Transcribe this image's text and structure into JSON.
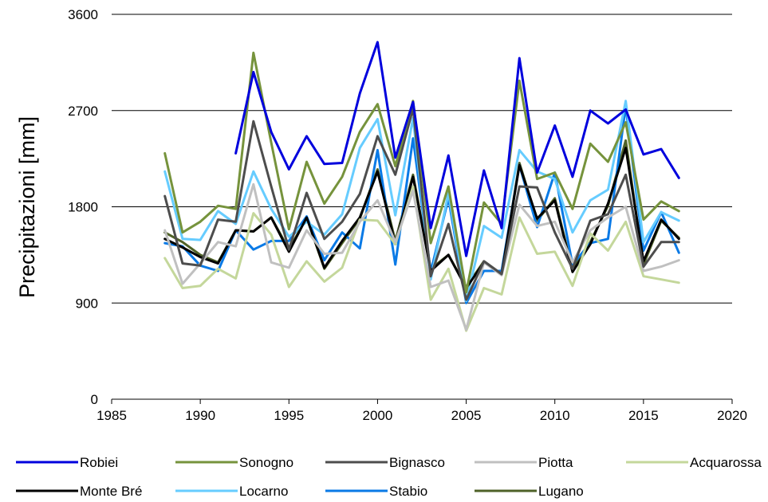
{
  "chart_data": {
    "type": "line",
    "title": "",
    "xlabel": "",
    "ylabel": "Precipitazioni [mm]",
    "xlim": [
      1985,
      2020
    ],
    "ylim": [
      0,
      3600
    ],
    "xticks": [
      "1985",
      "1990",
      "1995",
      "2000",
      "2005",
      "2010",
      "2015",
      "2020"
    ],
    "yticks": [
      "0",
      "900",
      "1800",
      "2700",
      "3600"
    ],
    "grid": "horizontal",
    "legend": "bottom",
    "x": [
      1988,
      1989,
      1990,
      1991,
      1992,
      1993,
      1994,
      1995,
      1996,
      1997,
      1998,
      1999,
      2000,
      2001,
      2002,
      2003,
      2004,
      2005,
      2006,
      2007,
      2008,
      2009,
      2010,
      2011,
      2012,
      2013,
      2014,
      2015,
      2016,
      2017
    ],
    "series": [
      {
        "name": "Robiei",
        "color": "#0000DD",
        "values": [
          null,
          null,
          null,
          null,
          2300,
          3060,
          2500,
          2150,
          2460,
          2200,
          2210,
          2860,
          3340,
          2260,
          2780,
          1600,
          2280,
          1340,
          2140,
          1600,
          3190,
          2120,
          2560,
          2080,
          2700,
          2580,
          2710,
          2290,
          2340,
          2070
        ]
      },
      {
        "name": "Sonogno",
        "color": "#76933C",
        "values": [
          2300,
          1560,
          1660,
          1810,
          1780,
          3240,
          2400,
          1590,
          2220,
          1830,
          2080,
          2500,
          2760,
          2180,
          2790,
          1460,
          1990,
          1000,
          1840,
          1640,
          2980,
          2060,
          2120,
          1780,
          2390,
          2220,
          2590,
          1680,
          1850,
          1760
        ]
      },
      {
        "name": "Bignasco",
        "color": "#4D4D4D",
        "values": [
          1900,
          1270,
          1250,
          1680,
          1660,
          2600,
          1990,
          1400,
          1930,
          1500,
          1660,
          1920,
          2460,
          2100,
          2720,
          1150,
          1640,
          930,
          1290,
          1170,
          1990,
          1980,
          1560,
          1220,
          1670,
          1730,
          2100,
          1240,
          1470,
          1470
        ]
      },
      {
        "name": "Piotta",
        "color": "#C0C0C0",
        "values": [
          1580,
          1080,
          1270,
          1470,
          1430,
          2010,
          1280,
          1230,
          1580,
          1360,
          1370,
          1660,
          1860,
          1470,
          1950,
          1050,
          1110,
          650,
          1280,
          1160,
          1820,
          1620,
          1660,
          1280,
          1580,
          1700,
          1800,
          1200,
          1240,
          1300
        ]
      },
      {
        "name": "Acquarossa",
        "color": "#C4D79B",
        "values": [
          1320,
          1040,
          1060,
          1220,
          1130,
          1740,
          1540,
          1050,
          1290,
          1100,
          1230,
          1680,
          1670,
          1450,
          1990,
          930,
          1220,
          640,
          1040,
          980,
          1700,
          1360,
          1380,
          1060,
          1550,
          1390,
          1660,
          1150,
          1120,
          1090
        ]
      },
      {
        "name": "Monte Bré",
        "color": "#000000",
        "values": [
          1500,
          1420,
          1330,
          1270,
          1580,
          1570,
          1700,
          1380,
          1700,
          1230,
          1480,
          1700,
          2130,
          1450,
          2080,
          1200,
          1350,
          1040,
          1280,
          1170,
          2190,
          1690,
          1860,
          1190,
          1450,
          1830,
          2350,
          1290,
          1680,
          1500
        ]
      },
      {
        "name": "Locarno",
        "color": "#66CCFF",
        "values": [
          2130,
          1500,
          1490,
          1760,
          1640,
          2130,
          1780,
          1520,
          1660,
          1540,
          1730,
          2350,
          2620,
          1720,
          2630,
          1120,
          1930,
          920,
          1620,
          1510,
          2330,
          2130,
          2060,
          1560,
          1860,
          1960,
          2790,
          1470,
          1750,
          1670
        ]
      },
      {
        "name": "Stabio",
        "color": "#0A7AE6",
        "values": [
          1460,
          1430,
          1250,
          1200,
          1580,
          1400,
          1480,
          1480,
          1710,
          1300,
          1560,
          1410,
          2330,
          1260,
          2440,
          1190,
          1880,
          900,
          1200,
          1200,
          2190,
          1610,
          2120,
          1260,
          1460,
          1500,
          2740,
          1390,
          1750,
          1370
        ]
      },
      {
        "name": "Lugano",
        "color": "#4F6228",
        "values": [
          1560,
          1470,
          1350,
          1280,
          1580,
          1570,
          1700,
          1400,
          1700,
          1220,
          1460,
          1690,
          2150,
          1480,
          2100,
          1220,
          1350,
          1050,
          1290,
          1170,
          2210,
          1670,
          1880,
          1210,
          1470,
          1810,
          2420,
          1260,
          1670,
          1510
        ]
      }
    ]
  }
}
